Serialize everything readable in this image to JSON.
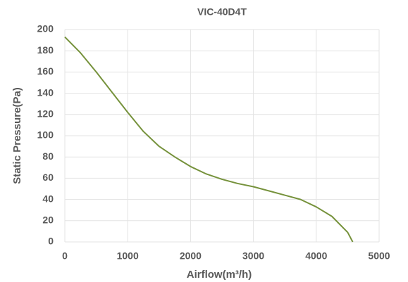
{
  "chart_data": {
    "type": "line",
    "title": "VIC-40D4T",
    "x_label": "Airflow(m³/h)",
    "y_label": "Static Pressure(Pa)",
    "x": [
      0,
      250,
      500,
      750,
      1000,
      1250,
      1500,
      1750,
      2000,
      2250,
      2500,
      2750,
      3000,
      3250,
      3500,
      3750,
      4000,
      4250,
      4500,
      4580
    ],
    "series": [
      {
        "name": "VIC-40D4T",
        "color": "#76923c",
        "values": [
          193,
          178,
          160,
          141,
          122,
          104,
          90,
          80,
          71,
          64,
          59,
          55,
          52,
          48,
          44,
          40,
          33,
          24,
          9,
          0
        ]
      }
    ],
    "xlim": [
      0,
      5000
    ],
    "xticks": [
      0,
      1000,
      2000,
      3000,
      4000,
      5000
    ],
    "ylim": [
      0,
      200
    ],
    "yticks": [
      0,
      20,
      40,
      60,
      80,
      100,
      120,
      140,
      160,
      180,
      200
    ],
    "grid": true
  }
}
